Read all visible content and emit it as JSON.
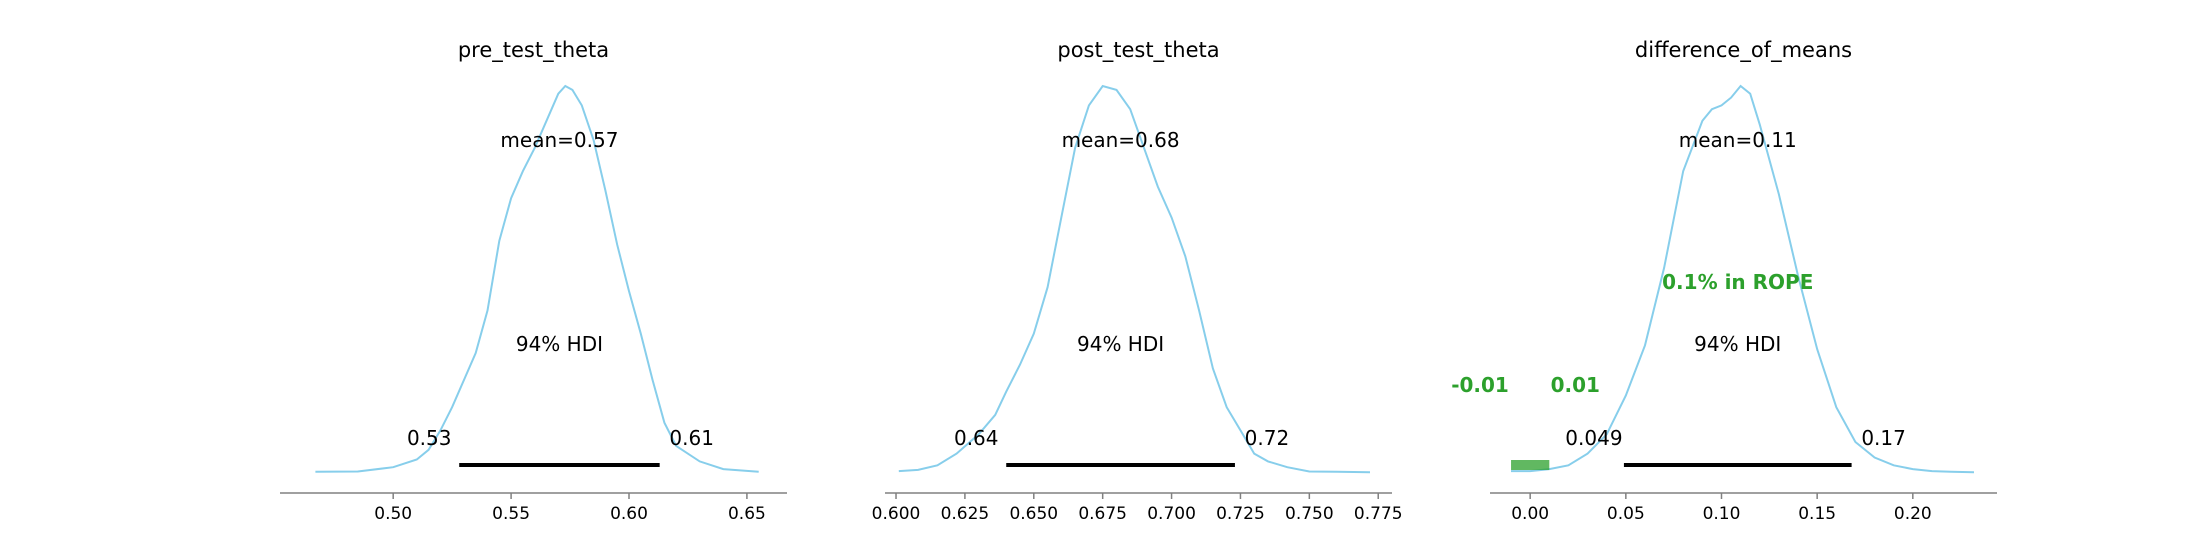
{
  "colors": {
    "kde": "#87ceeb",
    "hdi_bar": "#000000",
    "rope": "#2ca02c",
    "rope_text": "#2ca02c",
    "axis": "#808080",
    "text": "#000000"
  },
  "chart_data": [
    {
      "type": "area",
      "title": "pre_test_theta",
      "mean_label": "mean=0.57",
      "hdi_label": "94% HDI",
      "hdi_low_label": "0.53",
      "hdi_high_label": "0.61",
      "hdi": [
        0.528,
        0.613
      ],
      "xlim": [
        0.452,
        0.667
      ],
      "xticks": [
        0.5,
        0.55,
        0.6,
        0.65
      ],
      "xtick_labels": [
        "0.50",
        "0.55",
        "0.60",
        "0.65"
      ],
      "grid": false,
      "density": {
        "x": [
          0.467,
          0.485,
          0.5,
          0.51,
          0.515,
          0.52,
          0.525,
          0.53,
          0.535,
          0.54,
          0.545,
          0.55,
          0.555,
          0.56,
          0.565,
          0.57,
          0.573,
          0.576,
          0.58,
          0.585,
          0.59,
          0.595,
          0.6,
          0.605,
          0.61,
          0.615,
          0.62,
          0.63,
          0.64,
          0.655
        ],
        "y": [
          0.003,
          0.004,
          0.015,
          0.035,
          0.06,
          0.11,
          0.17,
          0.24,
          0.31,
          0.42,
          0.6,
          0.71,
          0.78,
          0.84,
          0.91,
          0.98,
          1.0,
          0.99,
          0.95,
          0.86,
          0.73,
          0.59,
          0.47,
          0.36,
          0.24,
          0.13,
          0.07,
          0.03,
          0.01,
          0.003
        ]
      }
    },
    {
      "type": "area",
      "title": "post_test_theta",
      "mean_label": "mean=0.68",
      "hdi_label": "94% HDI",
      "hdi_low_label": "0.64",
      "hdi_high_label": "0.72",
      "hdi": [
        0.64,
        0.723
      ],
      "xlim": [
        0.596,
        0.78
      ],
      "xticks": [
        0.6,
        0.625,
        0.65,
        0.675,
        0.7,
        0.725,
        0.75,
        0.775
      ],
      "xtick_labels": [
        "0.600",
        "0.625",
        "0.650",
        "0.675",
        "0.700",
        "0.725",
        "0.750",
        "0.775"
      ],
      "grid": false,
      "density": {
        "x": [
          0.601,
          0.608,
          0.615,
          0.622,
          0.63,
          0.636,
          0.64,
          0.645,
          0.65,
          0.655,
          0.66,
          0.665,
          0.67,
          0.675,
          0.68,
          0.685,
          0.69,
          0.695,
          0.7,
          0.705,
          0.71,
          0.715,
          0.72,
          0.725,
          0.73,
          0.735,
          0.742,
          0.75,
          0.76,
          0.772
        ],
        "y": [
          0.005,
          0.008,
          0.02,
          0.05,
          0.1,
          0.15,
          0.21,
          0.28,
          0.36,
          0.48,
          0.66,
          0.84,
          0.95,
          1.0,
          0.99,
          0.94,
          0.84,
          0.74,
          0.66,
          0.56,
          0.42,
          0.27,
          0.17,
          0.11,
          0.05,
          0.03,
          0.015,
          0.004,
          0.003,
          0.002
        ]
      }
    },
    {
      "type": "area",
      "title": "difference_of_means",
      "mean_label": "mean=0.11",
      "hdi_label": "94% HDI",
      "hdi_low_label": "0.049",
      "hdi_high_label": "0.17",
      "rope_label": "0.1% in ROPE",
      "rope_low_label": "-0.01",
      "rope_high_label": "0.01",
      "rope": [
        -0.01,
        0.01
      ],
      "hdi": [
        0.049,
        0.168
      ],
      "xlim": [
        -0.021,
        0.244
      ],
      "xticks": [
        0.0,
        0.05,
        0.1,
        0.15,
        0.2
      ],
      "xtick_labels": [
        "0.00",
        "0.05",
        "0.10",
        "0.15",
        "0.20"
      ],
      "grid": false,
      "density": {
        "x": [
          -0.01,
          0.0,
          0.01,
          0.02,
          0.03,
          0.04,
          0.05,
          0.06,
          0.07,
          0.08,
          0.09,
          0.095,
          0.1,
          0.105,
          0.11,
          0.115,
          0.12,
          0.13,
          0.14,
          0.15,
          0.16,
          0.17,
          0.18,
          0.19,
          0.2,
          0.21,
          0.22,
          0.232
        ],
        "y": [
          0.005,
          0.005,
          0.01,
          0.02,
          0.05,
          0.1,
          0.2,
          0.33,
          0.53,
          0.78,
          0.91,
          0.94,
          0.95,
          0.97,
          1.0,
          0.98,
          0.9,
          0.72,
          0.51,
          0.32,
          0.17,
          0.08,
          0.04,
          0.02,
          0.01,
          0.005,
          0.003,
          0.002
        ]
      }
    }
  ]
}
